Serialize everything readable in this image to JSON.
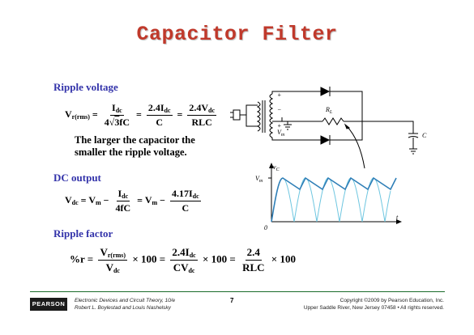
{
  "title": "Capacitor Filter",
  "sections": {
    "ripple_voltage": {
      "heading": "Ripple voltage",
      "vr": "V",
      "vr_sub": "r(rms)",
      "f1_num": "I",
      "f1_num_sub": "dc",
      "f1_den": "4",
      "f1_den_root": "3",
      "f1_den_tail": "fC",
      "f2_num": "2.4I",
      "f2_num_sub": "dc",
      "f2_den": "C",
      "f3_num": "2.4V",
      "f3_num_sub": "dc",
      "f3_den": "RLC",
      "eq_sign": "=",
      "note_line1": "The larger the capacitor the",
      "note_line2": "smaller the ripple voltage."
    },
    "dc_output": {
      "heading": "DC output",
      "vdc": "V",
      "vdc_sub": "dc",
      "vm": "V",
      "vm_sub": "m",
      "f1_num": "I",
      "f1_num_sub": "dc",
      "f1_den": "4fC",
      "f2_num": "4.17I",
      "f2_num_sub": "dc",
      "f2_den": "C",
      "minus": "−",
      "eq_sign": "="
    },
    "ripple_factor": {
      "heading": "Ripple factor",
      "pr": "%r",
      "f1_num": "V",
      "f1_num_sub": "r(rms)",
      "f1_den": "V",
      "f1_den_sub": "dc",
      "f2_num": "2.4I",
      "f2_num_sub": "dc",
      "f2_den": "CV",
      "f2_den_sub": "dc",
      "f3_num": "2.4",
      "f3_den": "RLC",
      "times100": "× 100",
      "eq_sign": "="
    }
  },
  "circuit": {
    "plus": "+",
    "minus": "−",
    "rl": "R",
    "rl_sub": "L",
    "vm": "V",
    "vm_sub": "m",
    "c": "C"
  },
  "waveform": {
    "y_label": "v",
    "y_label_sub": "C",
    "vm_label": "V",
    "vm_label_sub": "m",
    "origin": "0",
    "t_label": "t",
    "pulse_count": 5,
    "ripple_color": "#2f7fb7",
    "rectified_color": "#6ec6e0"
  },
  "footer": {
    "logo": "PEARSON",
    "book_line1": "Electronic Devices and Circuit Theory, 10/e",
    "book_line2": "Robert L. Boylestad and Louis Nashelsky",
    "page": "7",
    "copyright_line1": "Copyright ©2009 by Pearson Education, Inc.",
    "copyright_line2": "Upper Saddle River, New Jersey 07458 • All rights reserved."
  },
  "colors": {
    "title": "#c0392b",
    "heading": "#3333aa",
    "footer_rule": "#1a6b2a"
  }
}
